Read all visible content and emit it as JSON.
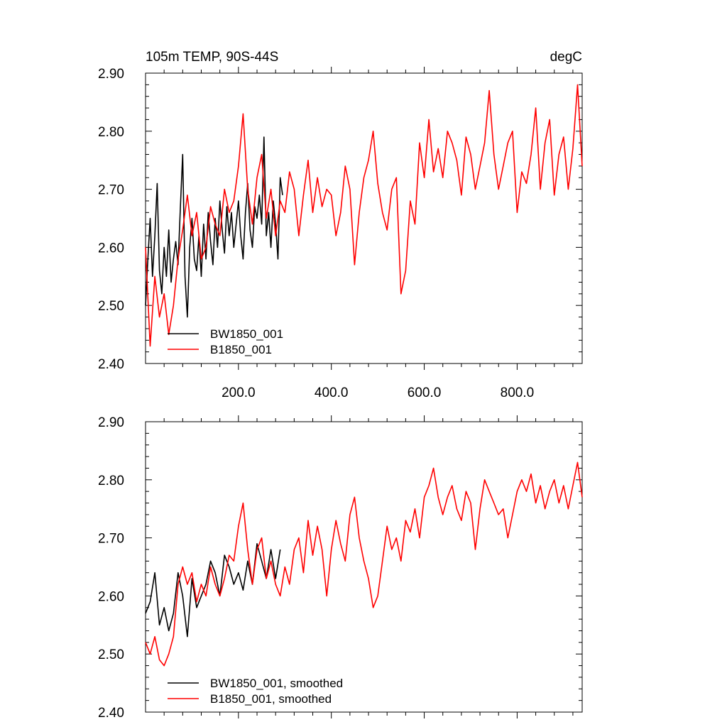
{
  "chart_data": [
    {
      "type": "line",
      "title_left": "105m TEMP, 90S-44S",
      "title_right": "degC",
      "xlim": [
        0,
        940
      ],
      "ylim": [
        2.4,
        2.9
      ],
      "x_tick_values": [
        200,
        400,
        600,
        800
      ],
      "x_tick_labels": [
        "200.0",
        "400.0",
        "600.0",
        "800.0"
      ],
      "y_tick_values": [
        2.4,
        2.5,
        2.6,
        2.7,
        2.8,
        2.9
      ],
      "y_tick_labels": [
        "2.40",
        "2.50",
        "2.60",
        "2.70",
        "2.80",
        "2.90"
      ],
      "legend_position": "bottom-left",
      "series": [
        {
          "name": "BW1850_001",
          "color": "#000000",
          "x": [
            0,
            5,
            10,
            15,
            20,
            25,
            30,
            35,
            40,
            45,
            50,
            55,
            60,
            65,
            70,
            75,
            80,
            85,
            90,
            95,
            100,
            105,
            110,
            115,
            120,
            125,
            130,
            135,
            140,
            145,
            150,
            155,
            160,
            165,
            170,
            175,
            180,
            185,
            190,
            195,
            200,
            205,
            210,
            215,
            220,
            225,
            230,
            235,
            240,
            245,
            250,
            255,
            260,
            265,
            270,
            275,
            280,
            285,
            290,
            295
          ],
          "values": [
            2.5,
            2.58,
            2.65,
            2.55,
            2.62,
            2.71,
            2.56,
            2.52,
            2.6,
            2.55,
            2.63,
            2.54,
            2.58,
            2.61,
            2.57,
            2.67,
            2.76,
            2.55,
            2.48,
            2.6,
            2.65,
            2.58,
            2.56,
            2.62,
            2.55,
            2.64,
            2.58,
            2.66,
            2.61,
            2.57,
            2.65,
            2.6,
            2.68,
            2.63,
            2.59,
            2.67,
            2.62,
            2.66,
            2.6,
            2.64,
            2.68,
            2.62,
            2.58,
            2.66,
            2.71,
            2.63,
            2.6,
            2.67,
            2.65,
            2.69,
            2.64,
            2.79,
            2.62,
            2.66,
            2.6,
            2.68,
            2.64,
            2.58,
            2.72,
            2.69
          ]
        },
        {
          "name": "B1850_001",
          "color": "#ff0000",
          "x": [
            0,
            10,
            20,
            30,
            40,
            50,
            60,
            70,
            80,
            90,
            100,
            110,
            120,
            130,
            140,
            150,
            160,
            170,
            180,
            190,
            200,
            210,
            220,
            230,
            240,
            250,
            260,
            270,
            280,
            290,
            300,
            310,
            320,
            330,
            340,
            350,
            360,
            370,
            380,
            390,
            400,
            410,
            420,
            430,
            440,
            450,
            460,
            470,
            480,
            490,
            500,
            510,
            520,
            530,
            540,
            550,
            560,
            570,
            580,
            590,
            600,
            610,
            620,
            630,
            640,
            650,
            660,
            670,
            680,
            690,
            700,
            710,
            720,
            730,
            740,
            750,
            760,
            770,
            780,
            790,
            800,
            810,
            820,
            830,
            840,
            850,
            860,
            870,
            880,
            890,
            900,
            910,
            920,
            930,
            940
          ],
          "values": [
            2.6,
            2.43,
            2.55,
            2.48,
            2.52,
            2.45,
            2.5,
            2.58,
            2.63,
            2.69,
            2.62,
            2.66,
            2.58,
            2.6,
            2.67,
            2.64,
            2.62,
            2.7,
            2.66,
            2.68,
            2.74,
            2.83,
            2.7,
            2.64,
            2.72,
            2.76,
            2.65,
            2.7,
            2.62,
            2.68,
            2.66,
            2.73,
            2.7,
            2.62,
            2.69,
            2.75,
            2.66,
            2.72,
            2.67,
            2.7,
            2.69,
            2.62,
            2.66,
            2.74,
            2.7,
            2.57,
            2.66,
            2.72,
            2.75,
            2.8,
            2.71,
            2.66,
            2.63,
            2.7,
            2.72,
            2.52,
            2.56,
            2.68,
            2.64,
            2.78,
            2.72,
            2.82,
            2.73,
            2.77,
            2.72,
            2.8,
            2.78,
            2.75,
            2.69,
            2.79,
            2.76,
            2.7,
            2.74,
            2.78,
            2.87,
            2.76,
            2.7,
            2.74,
            2.78,
            2.8,
            2.66,
            2.73,
            2.71,
            2.76,
            2.84,
            2.7,
            2.78,
            2.82,
            2.69,
            2.76,
            2.79,
            2.7,
            2.77,
            2.88,
            2.74
          ]
        }
      ]
    },
    {
      "type": "line",
      "xlim": [
        0,
        940
      ],
      "ylim": [
        2.4,
        2.9
      ],
      "y_tick_values": [
        2.4,
        2.5,
        2.6,
        2.7,
        2.8,
        2.9
      ],
      "y_tick_labels": [
        "2.40",
        "2.50",
        "2.60",
        "2.70",
        "2.80",
        "2.90"
      ],
      "legend_position": "bottom-left",
      "series": [
        {
          "name": "BW1850_001, smoothed",
          "color": "#000000",
          "x": [
            0,
            10,
            20,
            30,
            40,
            50,
            60,
            70,
            80,
            90,
            100,
            110,
            120,
            130,
            140,
            150,
            160,
            170,
            180,
            190,
            200,
            210,
            220,
            230,
            240,
            250,
            260,
            270,
            280,
            290
          ],
          "values": [
            2.57,
            2.59,
            2.64,
            2.55,
            2.58,
            2.54,
            2.57,
            2.64,
            2.6,
            2.53,
            2.63,
            2.58,
            2.6,
            2.62,
            2.66,
            2.64,
            2.6,
            2.67,
            2.65,
            2.62,
            2.64,
            2.61,
            2.66,
            2.62,
            2.69,
            2.66,
            2.63,
            2.68,
            2.63,
            2.68
          ]
        },
        {
          "name": "B1850_001, smoothed",
          "color": "#ff0000",
          "x": [
            0,
            10,
            20,
            30,
            40,
            50,
            60,
            70,
            80,
            90,
            100,
            110,
            120,
            130,
            140,
            150,
            160,
            170,
            180,
            190,
            200,
            210,
            220,
            230,
            240,
            250,
            260,
            270,
            280,
            290,
            300,
            310,
            320,
            330,
            340,
            350,
            360,
            370,
            380,
            390,
            400,
            410,
            420,
            430,
            440,
            450,
            460,
            470,
            480,
            490,
            500,
            510,
            520,
            530,
            540,
            550,
            560,
            570,
            580,
            590,
            600,
            610,
            620,
            630,
            640,
            650,
            660,
            670,
            680,
            690,
            700,
            710,
            720,
            730,
            740,
            750,
            760,
            770,
            780,
            790,
            800,
            810,
            820,
            830,
            840,
            850,
            860,
            870,
            880,
            890,
            900,
            910,
            920,
            930,
            940
          ],
          "values": [
            2.52,
            2.5,
            2.53,
            2.49,
            2.48,
            2.5,
            2.53,
            2.62,
            2.65,
            2.62,
            2.64,
            2.59,
            2.62,
            2.6,
            2.65,
            2.62,
            2.6,
            2.63,
            2.67,
            2.66,
            2.72,
            2.76,
            2.68,
            2.62,
            2.68,
            2.7,
            2.63,
            2.66,
            2.62,
            2.6,
            2.65,
            2.62,
            2.68,
            2.7,
            2.64,
            2.73,
            2.67,
            2.72,
            2.68,
            2.6,
            2.68,
            2.73,
            2.69,
            2.66,
            2.74,
            2.77,
            2.7,
            2.66,
            2.63,
            2.58,
            2.6,
            2.66,
            2.72,
            2.68,
            2.7,
            2.66,
            2.73,
            2.71,
            2.75,
            2.7,
            2.77,
            2.79,
            2.82,
            2.77,
            2.74,
            2.77,
            2.79,
            2.75,
            2.73,
            2.78,
            2.76,
            2.68,
            2.75,
            2.8,
            2.78,
            2.76,
            2.74,
            2.75,
            2.7,
            2.74,
            2.78,
            2.8,
            2.78,
            2.81,
            2.76,
            2.79,
            2.75,
            2.78,
            2.8,
            2.76,
            2.79,
            2.75,
            2.79,
            2.83,
            2.77
          ]
        }
      ]
    }
  ]
}
